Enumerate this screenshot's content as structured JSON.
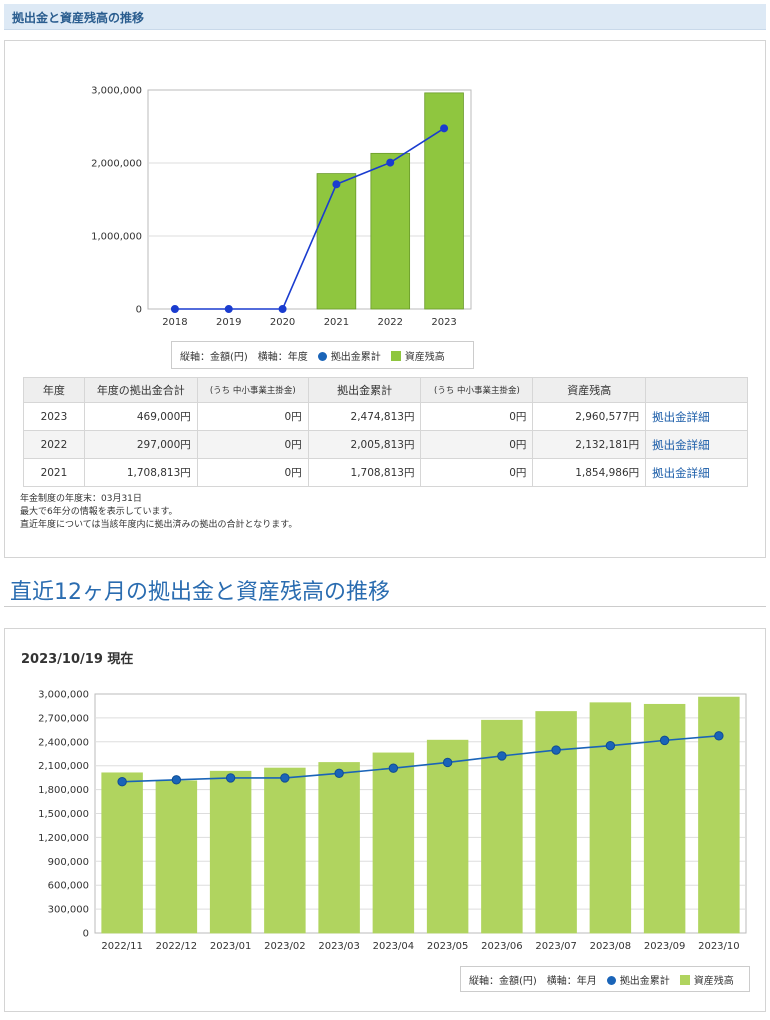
{
  "section1": {
    "header": "拠出金と資産残高の推移"
  },
  "legend": {
    "axis_note": "縦軸：金額(円)　横軸：年度",
    "series_contrib": "拠出金累計",
    "series_assets": "資産残高"
  },
  "colors": {
    "bar": "#8fc63f",
    "bar2": "#b0d45f",
    "line": "#1a3ccf",
    "line2": "#1a64b8",
    "marker": "#1a3ccf",
    "marker2": "#1a64b8"
  },
  "chart_data": [
    {
      "type": "bar",
      "categories": [
        "2018",
        "2019",
        "2020",
        "2021",
        "2022",
        "2023"
      ],
      "series": [
        {
          "name": "資産残高",
          "type": "bar",
          "values": [
            0,
            0,
            0,
            1854986,
            2132181,
            2960577
          ]
        },
        {
          "name": "拠出金累計",
          "type": "line",
          "values": [
            0,
            0,
            0,
            1708813,
            2005813,
            2474813
          ]
        }
      ],
      "ylim": [
        0,
        3000000
      ],
      "yticks": [
        0,
        1000000,
        2000000,
        3000000
      ],
      "ytick_labels": [
        "0",
        "1,000,000",
        "2,000,000",
        "3,000,000"
      ],
      "grid": true,
      "legend_placement": "bottom-center"
    },
    {
      "type": "bar",
      "categories": [
        "2022/11",
        "2022/12",
        "2023/01",
        "2023/02",
        "2023/03",
        "2023/04",
        "2023/05",
        "2023/06",
        "2023/07",
        "2023/08",
        "2023/09",
        "2023/10"
      ],
      "series": [
        {
          "name": "資産残高",
          "type": "bar",
          "values": [
            2010000,
            1910000,
            2030000,
            2070000,
            2140000,
            2260000,
            2420000,
            2670000,
            2780000,
            2890000,
            2870000,
            2960577
          ]
        },
        {
          "name": "拠出金累計",
          "type": "line",
          "values": [
            1898813,
            1922813,
            1946813,
            1946813,
            2004813,
            2068813,
            2140813,
            2222813,
            2296813,
            2350813,
            2417813,
            2474813
          ]
        }
      ],
      "ylim": [
        0,
        3000000
      ],
      "yticks": [
        0,
        300000,
        600000,
        900000,
        1200000,
        1500000,
        1800000,
        2100000,
        2400000,
        2700000,
        3000000
      ],
      "ytick_labels": [
        "0",
        "300,000",
        "600,000",
        "900,000",
        "1,200,000",
        "1,500,000",
        "1,800,000",
        "2,100,000",
        "2,400,000",
        "2,700,000",
        "3,000,000"
      ],
      "grid": true,
      "legend_placement": "bottom-right"
    }
  ],
  "table": {
    "headers": [
      "年度",
      "年度の拠出金合計",
      "(うち 中小事業主掛金)",
      "拠出金累計",
      "(うち 中小事業主掛金)",
      "資産残高",
      ""
    ],
    "rows": [
      {
        "year": "2023",
        "annual": "469,000円",
        "employer1": "0円",
        "cumulative": "2,474,813円",
        "employer2": "0円",
        "assets": "2,960,577円",
        "link": "拠出金詳細"
      },
      {
        "year": "2022",
        "annual": "297,000円",
        "employer1": "0円",
        "cumulative": "2,005,813円",
        "employer2": "0円",
        "assets": "2,132,181円",
        "link": "拠出金詳細"
      },
      {
        "year": "2021",
        "annual": "1,708,813円",
        "employer1": "0円",
        "cumulative": "1,708,813円",
        "employer2": "0円",
        "assets": "1,854,986円",
        "link": "拠出金詳細"
      }
    ]
  },
  "notes": [
    "年金制度の年度末：03月31日",
    "最大で6年分の情報を表示しています。",
    "直近年度については当該年度内に拠出済みの拠出の合計となります。"
  ],
  "section2": {
    "title": "直近12ヶ月の拠出金と資産残高の推移",
    "as_of": "2023/10/19 現在"
  },
  "legend2": {
    "axis_note": "縦軸：金額(円)　横軸：年月",
    "series_contrib": "拠出金累計",
    "series_assets": "資産残高"
  }
}
